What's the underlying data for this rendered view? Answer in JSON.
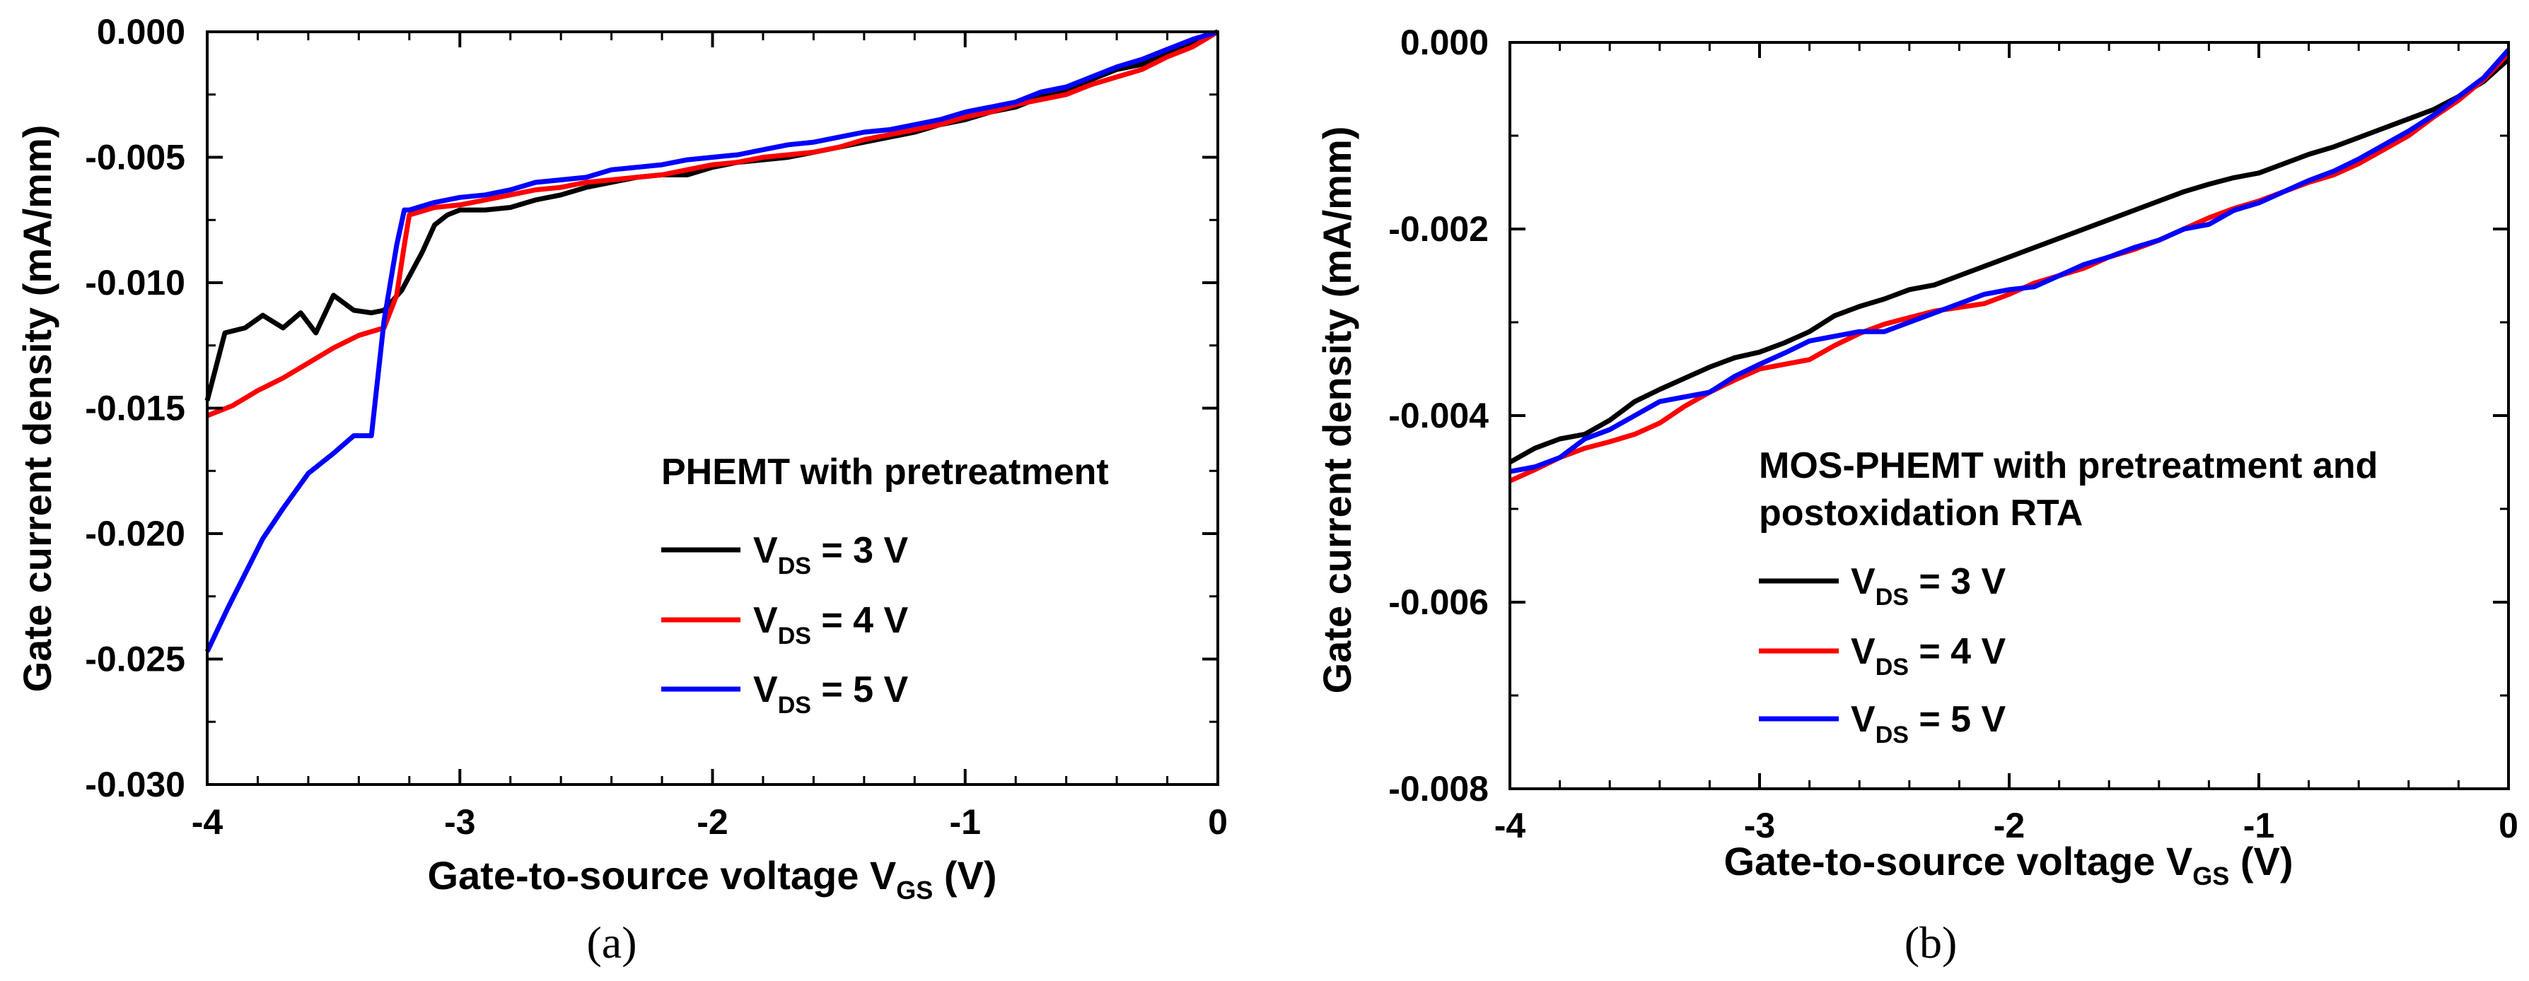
{
  "chart_data": [
    {
      "type": "line",
      "panel_label": "(a)",
      "title": "",
      "xlabel": "Gate-to-source voltage V",
      "xlabel_sub": "GS",
      "xlabel_suffix": " (V)",
      "ylabel": "Gate current density (mA/mm)",
      "xlim": [
        -4,
        0
      ],
      "ylim": [
        -0.03,
        0
      ],
      "xticks": [
        -4,
        -3,
        -2,
        -1,
        0
      ],
      "xtick_labels": [
        "-4",
        "-3",
        "-2",
        "-1",
        "0"
      ],
      "yticks": [
        0,
        -0.005,
        -0.01,
        -0.015,
        -0.02,
        -0.025,
        -0.03
      ],
      "ytick_labels": [
        "0.000",
        "-0.005",
        "-0.010",
        "-0.015",
        "-0.020",
        "-0.025",
        "-0.030"
      ],
      "grid": false,
      "legend_title": "PHEMT with pretreatment",
      "legend_position": "lower-right",
      "series": [
        {
          "name": "V DS = 3 V",
          "label_main": "V",
          "label_sub": "DS",
          "label_rest": " = 3 V",
          "color": "#000000",
          "x": [
            -4,
            -3.93,
            -3.85,
            -3.78,
            -3.7,
            -3.63,
            -3.57,
            -3.5,
            -3.42,
            -3.35,
            -3.3,
            -3.23,
            -3.15,
            -3.1,
            -3.05,
            -3,
            -2.9,
            -2.8,
            -2.7,
            -2.6,
            -2.5,
            -2.4,
            -2.3,
            -2.2,
            -2.1,
            -2,
            -1.9,
            -1.8,
            -1.7,
            -1.6,
            -1.5,
            -1.4,
            -1.3,
            -1.2,
            -1.1,
            -1,
            -0.9,
            -0.8,
            -0.7,
            -0.6,
            -0.5,
            -0.4,
            -0.3,
            -0.2,
            -0.1,
            0
          ],
          "y": [
            -0.0147,
            -0.012,
            -0.0118,
            -0.0113,
            -0.0118,
            -0.0112,
            -0.012,
            -0.0105,
            -0.0111,
            -0.0112,
            -0.0111,
            -0.0103,
            -0.0088,
            -0.0077,
            -0.0073,
            -0.0071,
            -0.0071,
            -0.007,
            -0.0067,
            -0.0065,
            -0.0062,
            -0.006,
            -0.0058,
            -0.0057,
            -0.0057,
            -0.0054,
            -0.0052,
            -0.0051,
            -0.005,
            -0.0048,
            -0.0046,
            -0.0044,
            -0.0042,
            -0.004,
            -0.0037,
            -0.0035,
            -0.0032,
            -0.003,
            -0.0026,
            -0.0024,
            -0.0019,
            -0.0015,
            -0.0013,
            -0.0009,
            -0.0005,
            0
          ]
        },
        {
          "name": "V DS = 4 V",
          "label_main": "V",
          "label_sub": "DS",
          "label_rest": " = 4 V",
          "color": "#ff0000",
          "x": [
            -4,
            -3.9,
            -3.8,
            -3.7,
            -3.6,
            -3.5,
            -3.4,
            -3.3,
            -3.25,
            -3.22,
            -3.2,
            -3.1,
            -3,
            -2.9,
            -2.8,
            -2.7,
            -2.6,
            -2.5,
            -2.4,
            -2.3,
            -2.2,
            -2.1,
            -2,
            -1.9,
            -1.8,
            -1.7,
            -1.6,
            -1.5,
            -1.4,
            -1.3,
            -1.2,
            -1.1,
            -1,
            -0.9,
            -0.8,
            -0.7,
            -0.6,
            -0.5,
            -0.4,
            -0.3,
            -0.2,
            -0.1,
            0
          ],
          "y": [
            -0.0153,
            -0.0149,
            -0.0143,
            -0.0138,
            -0.0132,
            -0.0126,
            -0.0121,
            -0.0118,
            -0.0105,
            -0.0085,
            -0.0073,
            -0.007,
            -0.0069,
            -0.0067,
            -0.0065,
            -0.0063,
            -0.0062,
            -0.006,
            -0.0059,
            -0.0058,
            -0.0057,
            -0.0055,
            -0.0053,
            -0.0052,
            -0.005,
            -0.0049,
            -0.0048,
            -0.0046,
            -0.0043,
            -0.0041,
            -0.0039,
            -0.0037,
            -0.0034,
            -0.0032,
            -0.0029,
            -0.0027,
            -0.0025,
            -0.0021,
            -0.0018,
            -0.0015,
            -0.001,
            -0.0006,
            0
          ]
        },
        {
          "name": "V DS = 5 V",
          "label_main": "V",
          "label_sub": "DS",
          "label_rest": " = 5 V",
          "color": "#0000ff",
          "x": [
            -4,
            -3.92,
            -3.85,
            -3.78,
            -3.7,
            -3.6,
            -3.5,
            -3.42,
            -3.35,
            -3.3,
            -3.25,
            -3.22,
            -3.2,
            -3.1,
            -3,
            -2.9,
            -2.8,
            -2.7,
            -2.6,
            -2.5,
            -2.4,
            -2.3,
            -2.2,
            -2.1,
            -2,
            -1.9,
            -1.8,
            -1.7,
            -1.6,
            -1.5,
            -1.4,
            -1.3,
            -1.2,
            -1.1,
            -1,
            -0.9,
            -0.8,
            -0.7,
            -0.6,
            -0.5,
            -0.4,
            -0.3,
            -0.2,
            -0.1,
            0
          ],
          "y": [
            -0.0247,
            -0.023,
            -0.0216,
            -0.0202,
            -0.019,
            -0.0176,
            -0.0168,
            -0.0161,
            -0.0161,
            -0.0115,
            -0.0085,
            -0.0071,
            -0.0071,
            -0.0068,
            -0.0066,
            -0.0065,
            -0.0063,
            -0.006,
            -0.0059,
            -0.0058,
            -0.0055,
            -0.0054,
            -0.0053,
            -0.0051,
            -0.005,
            -0.0049,
            -0.0047,
            -0.0045,
            -0.0044,
            -0.0042,
            -0.004,
            -0.0039,
            -0.0037,
            -0.0035,
            -0.0032,
            -0.003,
            -0.0028,
            -0.0024,
            -0.0022,
            -0.0018,
            -0.0014,
            -0.0011,
            -0.0007,
            -0.0003,
            0
          ]
        }
      ]
    },
    {
      "type": "line",
      "panel_label": "(b)",
      "title": "",
      "xlabel": "Gate-to-source voltage V",
      "xlabel_sub": "GS",
      "xlabel_suffix": " (V)",
      "ylabel": "Gate current density (mA/mm)",
      "xlim": [
        -4,
        0
      ],
      "ylim": [
        -0.008,
        0
      ],
      "xticks": [
        -4,
        -3,
        -2,
        -1,
        0
      ],
      "xtick_labels": [
        "-4",
        "-3",
        "-2",
        "-1",
        "0"
      ],
      "yticks": [
        0,
        -0.002,
        -0.004,
        -0.006,
        -0.008
      ],
      "ytick_labels": [
        "0.000",
        "-0.002",
        "-0.004",
        "-0.006",
        "-0.008"
      ],
      "grid": false,
      "legend_title": "MOS-PHEMT with pretreatment and",
      "legend_title_line2": "postoxidation RTA",
      "legend_position": "right-middle",
      "series": [
        {
          "name": "V DS = 3 V",
          "label_main": "V",
          "label_sub": "DS",
          "label_rest": " = 3 V",
          "color": "#000000",
          "x": [
            -4,
            -3.9,
            -3.8,
            -3.7,
            -3.6,
            -3.5,
            -3.4,
            -3.3,
            -3.2,
            -3.1,
            -3,
            -2.9,
            -2.8,
            -2.7,
            -2.6,
            -2.5,
            -2.4,
            -2.3,
            -2.2,
            -2.1,
            -2,
            -1.9,
            -1.8,
            -1.7,
            -1.6,
            -1.5,
            -1.4,
            -1.3,
            -1.2,
            -1.1,
            -1,
            -0.9,
            -0.8,
            -0.7,
            -0.6,
            -0.5,
            -0.4,
            -0.3,
            -0.2,
            -0.1,
            0
          ],
          "y": [
            -0.0045,
            -0.00435,
            -0.00425,
            -0.0042,
            -0.00405,
            -0.00385,
            -0.00372,
            -0.0036,
            -0.00348,
            -0.00338,
            -0.00332,
            -0.00322,
            -0.0031,
            -0.00293,
            -0.00283,
            -0.00275,
            -0.00265,
            -0.0026,
            -0.0025,
            -0.0024,
            -0.0023,
            -0.0022,
            -0.0021,
            -0.002,
            -0.0019,
            -0.0018,
            -0.0017,
            -0.0016,
            -0.00152,
            -0.00145,
            -0.0014,
            -0.0013,
            -0.0012,
            -0.00112,
            -0.00102,
            -0.00092,
            -0.00082,
            -0.00072,
            -0.00058,
            -0.00042,
            -0.00018
          ]
        },
        {
          "name": "V DS = 4 V",
          "label_main": "V",
          "label_sub": "DS",
          "label_rest": " = 4 V",
          "color": "#ff0000",
          "x": [
            -4,
            -3.9,
            -3.8,
            -3.7,
            -3.6,
            -3.5,
            -3.4,
            -3.3,
            -3.2,
            -3.1,
            -3,
            -2.9,
            -2.8,
            -2.7,
            -2.6,
            -2.5,
            -2.4,
            -2.3,
            -2.2,
            -2.1,
            -2,
            -1.9,
            -1.8,
            -1.7,
            -1.6,
            -1.5,
            -1.4,
            -1.3,
            -1.2,
            -1.1,
            -1,
            -0.9,
            -0.8,
            -0.7,
            -0.6,
            -0.5,
            -0.4,
            -0.3,
            -0.2,
            -0.1,
            0
          ],
          "y": [
            -0.0047,
            -0.00458,
            -0.00445,
            -0.00435,
            -0.00428,
            -0.0042,
            -0.00408,
            -0.0039,
            -0.00375,
            -0.00362,
            -0.0035,
            -0.00345,
            -0.0034,
            -0.00325,
            -0.00312,
            -0.00302,
            -0.00295,
            -0.00288,
            -0.00284,
            -0.0028,
            -0.0027,
            -0.00258,
            -0.0025,
            -0.00242,
            -0.0023,
            -0.00222,
            -0.00212,
            -0.002,
            -0.00188,
            -0.00178,
            -0.0017,
            -0.0016,
            -0.0015,
            -0.00142,
            -0.0013,
            -0.00115,
            -0.001,
            -0.0008,
            -0.00062,
            -0.0004,
            -0.00012
          ]
        },
        {
          "name": "V DS = 5 V",
          "label_main": "V",
          "label_sub": "DS",
          "label_rest": " = 5 V",
          "color": "#0000ff",
          "x": [
            -4,
            -3.9,
            -3.8,
            -3.7,
            -3.6,
            -3.5,
            -3.4,
            -3.3,
            -3.2,
            -3.1,
            -3,
            -2.9,
            -2.8,
            -2.7,
            -2.6,
            -2.5,
            -2.4,
            -2.3,
            -2.2,
            -2.1,
            -2,
            -1.9,
            -1.8,
            -1.7,
            -1.6,
            -1.5,
            -1.4,
            -1.3,
            -1.2,
            -1.1,
            -1,
            -0.9,
            -0.8,
            -0.7,
            -0.6,
            -0.5,
            -0.4,
            -0.3,
            -0.2,
            -0.1,
            0
          ],
          "y": [
            -0.0046,
            -0.00455,
            -0.00445,
            -0.00425,
            -0.00415,
            -0.004,
            -0.00385,
            -0.0038,
            -0.00375,
            -0.00358,
            -0.00345,
            -0.00333,
            -0.0032,
            -0.00315,
            -0.0031,
            -0.0031,
            -0.003,
            -0.0029,
            -0.0028,
            -0.0027,
            -0.00265,
            -0.00262,
            -0.0025,
            -0.00238,
            -0.0023,
            -0.0022,
            -0.00212,
            -0.002,
            -0.00195,
            -0.0018,
            -0.00172,
            -0.0016,
            -0.00148,
            -0.00138,
            -0.00125,
            -0.0011,
            -0.00095,
            -0.00078,
            -0.00058,
            -0.00038,
            -8e-05
          ]
        }
      ]
    }
  ]
}
